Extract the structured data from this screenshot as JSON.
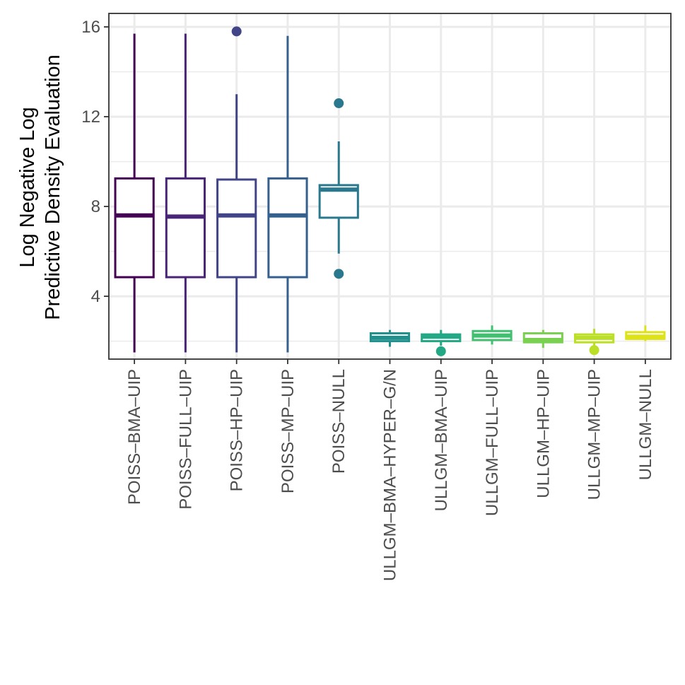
{
  "chart_data": {
    "type": "boxplot",
    "title": "",
    "xlabel": "",
    "ylabel_lines": [
      "Log Negative Log",
      "Predictive Density Evaluation"
    ],
    "ylim": [
      1.2,
      16.6
    ],
    "y_ticks": [
      4,
      8,
      12,
      16
    ],
    "y_tick_labels": [
      "4",
      "8",
      "12",
      "16"
    ],
    "y_minor_ticks": [
      2,
      6,
      10,
      14
    ],
    "grid": true,
    "legend": "none",
    "categories": [
      "POISS–BMA–UIP",
      "POISS–FULL–UIP",
      "POISS–HP–UIP",
      "POISS–MP–UIP",
      "POISS–NULL",
      "ULLGM–BMA–HYPER–G/N",
      "ULLGM–BMA–UIP",
      "ULLGM–FULL–UIP",
      "ULLGM–HP–UIP",
      "ULLGM–MP–UIP",
      "ULLGM–NULL"
    ],
    "boxes": [
      {
        "name": "POISS–BMA–UIP",
        "whisker_low": 1.5,
        "q1": 4.85,
        "median": 7.6,
        "q3": 9.25,
        "whisker_high": 15.7,
        "outliers": [],
        "color": "#440154"
      },
      {
        "name": "POISS–FULL–UIP",
        "whisker_low": 1.5,
        "q1": 4.85,
        "median": 7.55,
        "q3": 9.25,
        "whisker_high": 15.7,
        "outliers": [],
        "color": "#482576"
      },
      {
        "name": "POISS–HP–UIP",
        "whisker_low": 1.5,
        "q1": 4.85,
        "median": 7.6,
        "q3": 9.2,
        "whisker_high": 13.0,
        "outliers": [
          15.8
        ],
        "color": "#414487"
      },
      {
        "name": "POISS–MP–UIP",
        "whisker_low": 1.5,
        "q1": 4.85,
        "median": 7.6,
        "q3": 9.25,
        "whisker_high": 15.6,
        "outliers": [],
        "color": "#35608D"
      },
      {
        "name": "POISS–NULL",
        "whisker_low": 5.9,
        "q1": 7.5,
        "median": 8.75,
        "q3": 8.95,
        "whisker_high": 10.9,
        "outliers": [
          12.6,
          5.0
        ],
        "color": "#2A788E"
      },
      {
        "name": "ULLGM–BMA–HYPER–G/N",
        "whisker_low": 1.75,
        "q1": 2.0,
        "median": 2.15,
        "q3": 2.35,
        "whisker_high": 2.5,
        "outliers": [],
        "color": "#21908C"
      },
      {
        "name": "ULLGM–BMA–UIP",
        "whisker_low": 1.8,
        "q1": 2.0,
        "median": 2.2,
        "q3": 2.3,
        "whisker_high": 2.5,
        "outliers": [
          1.55
        ],
        "color": "#22A884"
      },
      {
        "name": "ULLGM–FULL–UIP",
        "whisker_low": 1.85,
        "q1": 2.05,
        "median": 2.25,
        "q3": 2.45,
        "whisker_high": 2.7,
        "outliers": [],
        "color": "#43BF71"
      },
      {
        "name": "ULLGM–HP–UIP",
        "whisker_low": 1.7,
        "q1": 1.95,
        "median": 2.05,
        "q3": 2.35,
        "whisker_high": 2.5,
        "outliers": [],
        "color": "#7AD151"
      },
      {
        "name": "ULLGM–MP–UIP",
        "whisker_low": 1.75,
        "q1": 1.95,
        "median": 2.15,
        "q3": 2.3,
        "whisker_high": 2.55,
        "outliers": [
          1.6
        ],
        "color": "#BBDF27"
      },
      {
        "name": "ULLGM–NULL",
        "whisker_low": 2.0,
        "q1": 2.1,
        "median": 2.2,
        "q3": 2.4,
        "whisker_high": 2.7,
        "outliers": [],
        "color": "#DDE318"
      }
    ]
  }
}
